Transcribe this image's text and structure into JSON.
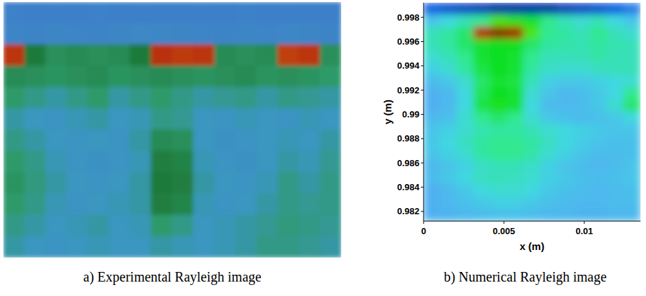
{
  "chart_data": [
    {
      "type": "heatmap",
      "title": "a) Experimental Rayleigh image",
      "color": "bluegreen",
      "tick_labels": false,
      "zlim": [
        0,
        1
      ],
      "cells": [
        [
          0.22,
          0.2,
          0.21,
          0.2,
          0.22,
          0.2,
          0.21,
          0.2,
          0.2,
          0.21,
          0.2,
          0.22,
          0.2,
          0.21,
          0.2,
          0.2
        ],
        [
          0.25,
          0.24,
          0.26,
          0.25,
          0.24,
          0.26,
          0.28,
          0.27,
          0.26,
          0.25,
          0.24,
          0.26,
          0.25,
          0.27,
          0.26,
          0.24
        ],
        [
          0.9,
          0.7,
          0.6,
          0.62,
          0.6,
          0.62,
          0.7,
          0.92,
          0.88,
          0.9,
          0.62,
          0.6,
          0.62,
          0.85,
          0.9,
          0.6
        ],
        [
          0.62,
          0.6,
          0.58,
          0.6,
          0.62,
          0.58,
          0.6,
          0.62,
          0.6,
          0.58,
          0.6,
          0.62,
          0.58,
          0.6,
          0.58,
          0.55
        ],
        [
          0.55,
          0.5,
          0.45,
          0.5,
          0.55,
          0.45,
          0.5,
          0.55,
          0.5,
          0.45,
          0.48,
          0.5,
          0.45,
          0.5,
          0.48,
          0.45
        ],
        [
          0.45,
          0.4,
          0.38,
          0.42,
          0.45,
          0.4,
          0.42,
          0.5,
          0.48,
          0.4,
          0.38,
          0.42,
          0.4,
          0.38,
          0.42,
          0.4
        ],
        [
          0.5,
          0.45,
          0.4,
          0.38,
          0.4,
          0.38,
          0.45,
          0.62,
          0.6,
          0.4,
          0.36,
          0.38,
          0.4,
          0.42,
          0.4,
          0.45
        ],
        [
          0.55,
          0.5,
          0.42,
          0.38,
          0.36,
          0.38,
          0.42,
          0.68,
          0.66,
          0.42,
          0.38,
          0.36,
          0.4,
          0.45,
          0.42,
          0.48
        ],
        [
          0.58,
          0.52,
          0.45,
          0.4,
          0.38,
          0.4,
          0.45,
          0.7,
          0.68,
          0.45,
          0.4,
          0.38,
          0.42,
          0.5,
          0.45,
          0.5
        ],
        [
          0.55,
          0.5,
          0.42,
          0.38,
          0.4,
          0.42,
          0.45,
          0.68,
          0.65,
          0.42,
          0.38,
          0.4,
          0.45,
          0.5,
          0.48,
          0.5
        ],
        [
          0.5,
          0.45,
          0.4,
          0.42,
          0.45,
          0.4,
          0.42,
          0.55,
          0.5,
          0.4,
          0.42,
          0.45,
          0.48,
          0.52,
          0.5,
          0.48
        ],
        [
          0.45,
          0.4,
          0.38,
          0.4,
          0.42,
          0.4,
          0.4,
          0.45,
          0.42,
          0.4,
          0.42,
          0.45,
          0.5,
          0.5,
          0.48,
          0.45
        ]
      ]
    },
    {
      "type": "heatmap",
      "title": "b) Numerical Rayleigh image",
      "color": "jet",
      "zlim": [
        0,
        1
      ],
      "x_label": "x (m)",
      "y_label": "y (m)",
      "xlim": [
        0,
        0.0135
      ],
      "ylim": [
        0.9812,
        0.9992
      ],
      "xticks": [
        0,
        0.005,
        0.01
      ],
      "yticks": [
        0.982,
        0.984,
        0.986,
        0.988,
        0.99,
        0.992,
        0.994,
        0.996,
        0.998
      ],
      "cells": [
        [
          0.15,
          0.12,
          0.1,
          0.08,
          0.05,
          0.05,
          0.05,
          0.05,
          0.08,
          0.1,
          0.12,
          0.15,
          0.2
        ],
        [
          0.35,
          0.4,
          0.45,
          0.5,
          0.6,
          0.58,
          0.55,
          0.5,
          0.45,
          0.42,
          0.45,
          0.4,
          0.35
        ],
        [
          0.45,
          0.48,
          0.52,
          0.9,
          0.95,
          0.92,
          0.6,
          0.5,
          0.48,
          0.45,
          0.5,
          0.45,
          0.42
        ],
        [
          0.45,
          0.48,
          0.52,
          0.55,
          0.56,
          0.56,
          0.52,
          0.48,
          0.47,
          0.46,
          0.48,
          0.46,
          0.45
        ],
        [
          0.42,
          0.45,
          0.5,
          0.55,
          0.56,
          0.55,
          0.5,
          0.45,
          0.45,
          0.45,
          0.47,
          0.45,
          0.45
        ],
        [
          0.38,
          0.42,
          0.48,
          0.54,
          0.56,
          0.55,
          0.48,
          0.43,
          0.42,
          0.42,
          0.44,
          0.45,
          0.45
        ],
        [
          0.33,
          0.36,
          0.42,
          0.52,
          0.55,
          0.54,
          0.45,
          0.38,
          0.36,
          0.36,
          0.38,
          0.4,
          0.42
        ],
        [
          0.3,
          0.32,
          0.4,
          0.53,
          0.56,
          0.55,
          0.42,
          0.35,
          0.32,
          0.33,
          0.36,
          0.4,
          0.5
        ],
        [
          0.3,
          0.32,
          0.4,
          0.54,
          0.57,
          0.55,
          0.4,
          0.33,
          0.32,
          0.33,
          0.36,
          0.42,
          0.52
        ],
        [
          0.32,
          0.34,
          0.42,
          0.5,
          0.52,
          0.5,
          0.42,
          0.36,
          0.34,
          0.33,
          0.34,
          0.36,
          0.4
        ],
        [
          0.35,
          0.38,
          0.42,
          0.46,
          0.48,
          0.48,
          0.45,
          0.42,
          0.4,
          0.38,
          0.36,
          0.35,
          0.35
        ],
        [
          0.36,
          0.4,
          0.44,
          0.48,
          0.5,
          0.5,
          0.48,
          0.44,
          0.4,
          0.37,
          0.35,
          0.34,
          0.34
        ],
        [
          0.35,
          0.38,
          0.42,
          0.48,
          0.5,
          0.5,
          0.47,
          0.42,
          0.38,
          0.35,
          0.33,
          0.33,
          0.34
        ],
        [
          0.32,
          0.35,
          0.38,
          0.43,
          0.45,
          0.45,
          0.43,
          0.38,
          0.35,
          0.33,
          0.32,
          0.33,
          0.35
        ],
        [
          0.33,
          0.36,
          0.4,
          0.44,
          0.45,
          0.44,
          0.42,
          0.38,
          0.36,
          0.34,
          0.33,
          0.34,
          0.35
        ],
        [
          0.3,
          0.32,
          0.36,
          0.4,
          0.42,
          0.42,
          0.4,
          0.36,
          0.34,
          0.33,
          0.32,
          0.33,
          0.34
        ],
        [
          0.3,
          0.32,
          0.34,
          0.36,
          0.38,
          0.38,
          0.36,
          0.34,
          0.33,
          0.32,
          0.32,
          0.33,
          0.33
        ],
        [
          0.3,
          0.31,
          0.32,
          0.33,
          0.34,
          0.34,
          0.33,
          0.32,
          0.32,
          0.31,
          0.31,
          0.32,
          0.32
        ]
      ]
    }
  ]
}
